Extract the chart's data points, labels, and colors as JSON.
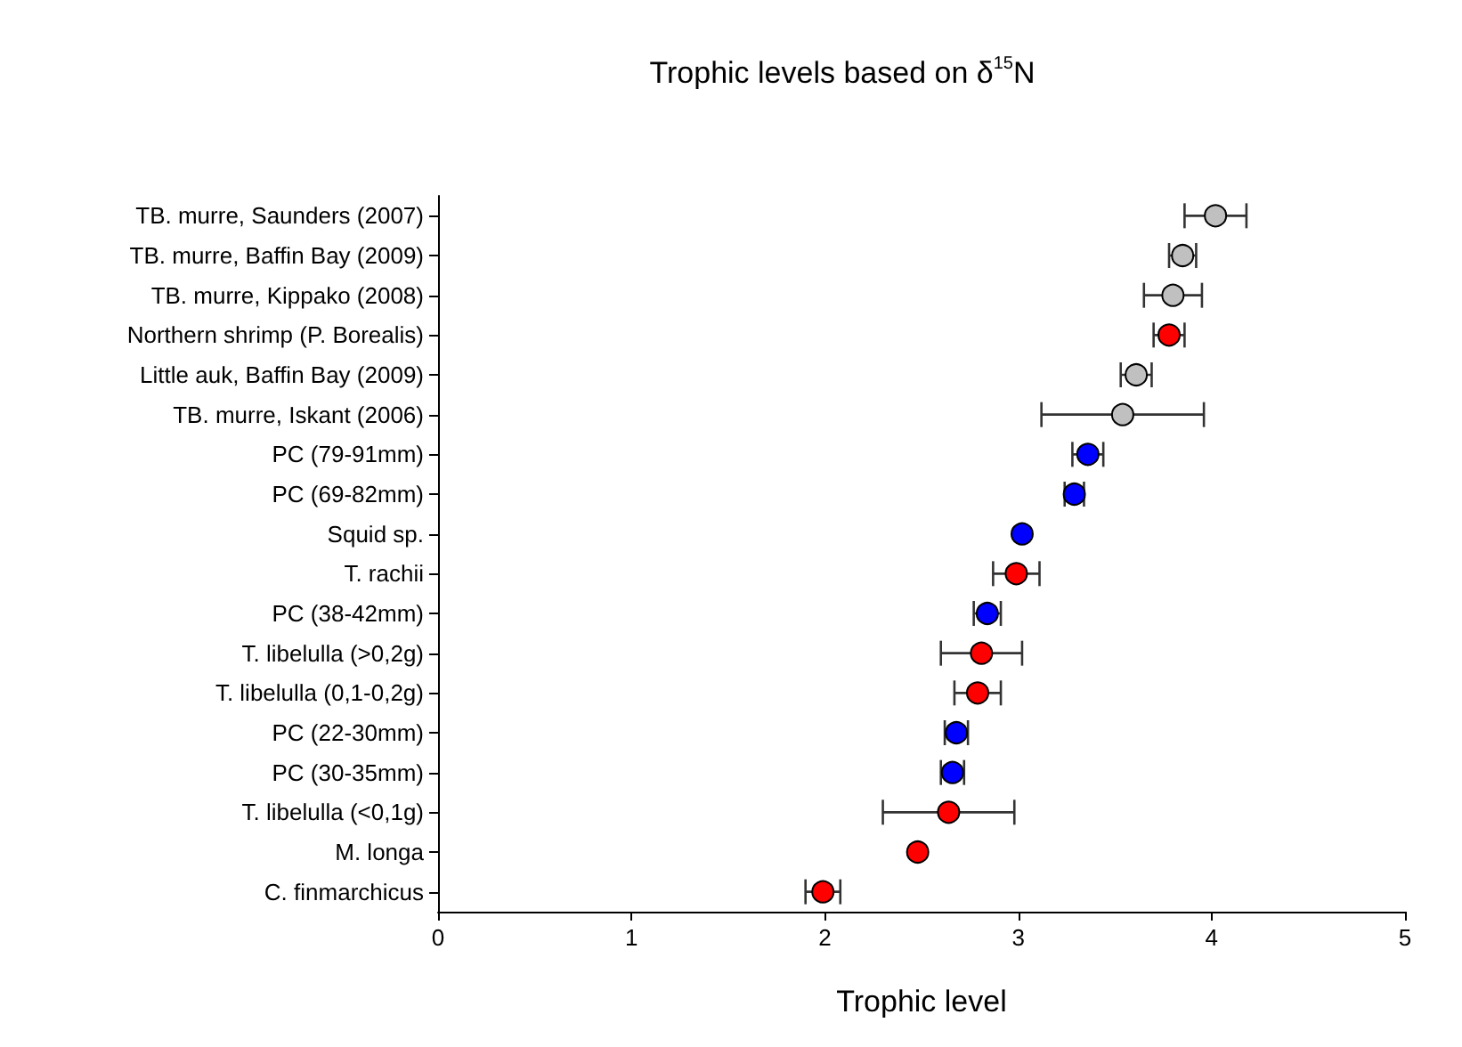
{
  "chart_data": {
    "type": "scatter",
    "orientation": "horizontal",
    "title": "Trophic levels based on δ$^{15}$N",
    "xlabel": "Trophic level",
    "categories": [
      "TB. murre, Saunders (2007)",
      "TB. murre, Baffin Bay (2009)",
      "TB. murre, Kippako (2008)",
      "Northern shrimp (P. Borealis)",
      "Little auk, Baffin Bay (2009)",
      "TB. murre, Iskant (2006)",
      "PC (79-91mm)",
      "PC (69-82mm)",
      "Squid sp.",
      "T. rachii",
      "PC (38-42mm)",
      "T. libelulla (>0,2g)",
      "T. libelulla (0,1-0,2g)",
      "PC (22-30mm)",
      "PC (30-35mm)",
      "T. libelulla (<0,1g)",
      "M. longa",
      "C. finmarchicus"
    ],
    "values": [
      4.02,
      3.85,
      3.8,
      3.78,
      3.61,
      3.54,
      3.36,
      3.29,
      3.02,
      2.99,
      2.84,
      2.81,
      2.79,
      2.68,
      2.66,
      2.64,
      2.48,
      1.99
    ],
    "errors": [
      0.16,
      0.07,
      0.15,
      0.08,
      0.08,
      0.42,
      0.08,
      0.05,
      null,
      0.12,
      0.07,
      0.21,
      0.12,
      0.06,
      0.06,
      0.34,
      null,
      0.09
    ],
    "colors": [
      "#c0c0c0",
      "#c0c0c0",
      "#c0c0c0",
      "#ff0000",
      "#c0c0c0",
      "#c0c0c0",
      "#0000ff",
      "#0000ff",
      "#0000ff",
      "#ff0000",
      "#0000ff",
      "#ff0000",
      "#ff0000",
      "#0000ff",
      "#0000ff",
      "#ff0000",
      "#ff0000",
      "#ff0000"
    ],
    "xlim": [
      0,
      5
    ],
    "xticks": [
      0,
      1,
      2,
      3,
      4,
      5
    ],
    "marker": "circle"
  }
}
